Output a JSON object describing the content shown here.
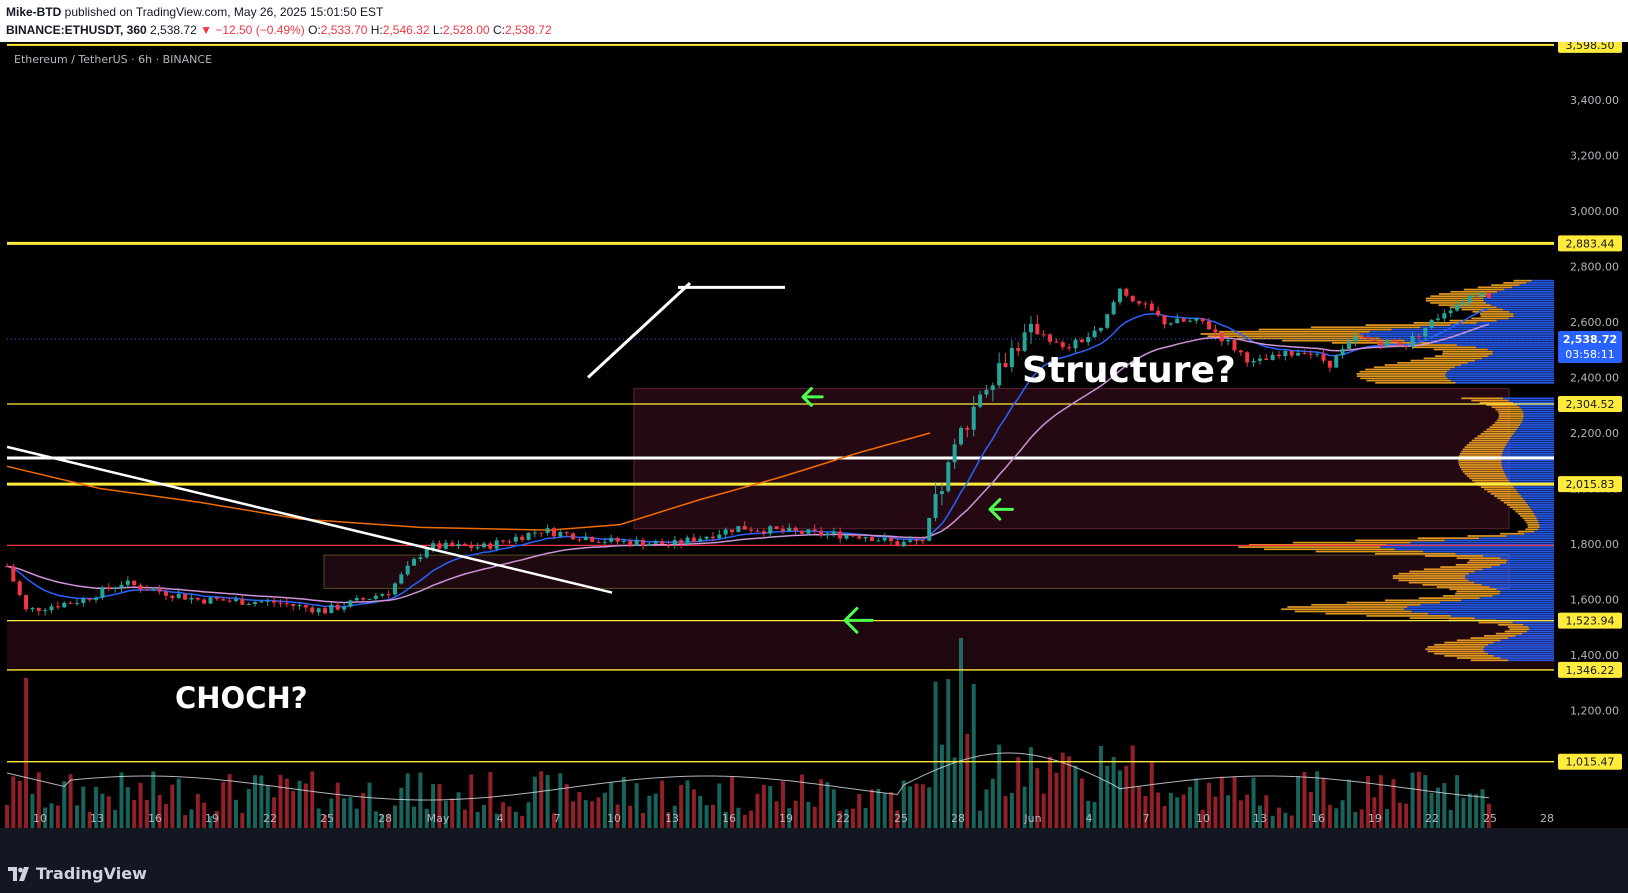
{
  "header": {
    "author": "Mike-BTD",
    "published": " published on TradingView.com, May 26, 2025 15:01:50 EST",
    "symbol": "BINANCE:ETHUSDT, 360",
    "last": " 2,538.72 ",
    "change": " −12.50 (−0.49%)",
    "o_label": "O:",
    "o": "2,533.70",
    "h_label": "H:",
    "h": "2,546.32",
    "l_label": "L:",
    "l": "2,528.00",
    "c_label": "C:",
    "c": "2,538.72"
  },
  "chart": {
    "pair_label": "Ethereum / TetherUS · 6h · BINANCE",
    "annotation_structure": "Structure?",
    "annotation_choch": "CHOCH?",
    "countdown": "03:58:11"
  },
  "footer": {
    "brand": "TradingView"
  },
  "chart_data": {
    "type": "candlestick",
    "y_axis_ticks": [
      "3,400.00",
      "3,200.00",
      "3,000.00",
      "2,800.00",
      "2,600.00",
      "2,400.00",
      "2,200.00",
      "2,000.00",
      "1,800.00",
      "1,600.00",
      "1,400.00",
      "1,200.00"
    ],
    "y_axis_tick_values": [
      3400,
      3200,
      3000,
      2800,
      2600,
      2400,
      2200,
      2000,
      1800,
      1600,
      1400,
      1200
    ],
    "x_axis_ticks": [
      "10",
      "13",
      "16",
      "19",
      "22",
      "25",
      "28",
      "May",
      "4",
      "7",
      "10",
      "13",
      "16",
      "19",
      "22",
      "25",
      "28",
      "Jun",
      "4",
      "7",
      "10",
      "13",
      "16",
      "19",
      "22",
      "25",
      "28"
    ],
    "y_range": [
      960,
      3620
    ],
    "levels": [
      {
        "price": 3598.5,
        "label": "3,598.50",
        "color": "#ffeb3b"
      },
      {
        "price": 2883.44,
        "label": "2,883.44",
        "color": "#ffeb3b"
      },
      {
        "price": 2304.52,
        "label": "2,304.52",
        "color": "#ffeb3b"
      },
      {
        "price": 2015.83,
        "label": "2,015.83",
        "color": "#ffeb3b"
      },
      {
        "price": 1523.94,
        "label": "1,523.94",
        "color": "#ffeb3b"
      },
      {
        "price": 1346.22,
        "label": "1,346.22",
        "color": "#ffeb3b"
      },
      {
        "price": 1015.47,
        "label": "1,015.47",
        "color": "#ffeb3b"
      },
      {
        "price": 2110,
        "label": "",
        "color": "#ffffff"
      },
      {
        "price": 1795,
        "label": "",
        "color": "#f23645"
      }
    ],
    "last_price": {
      "value": 2538.72,
      "label": "2,538.72",
      "color": "#2962ff"
    },
    "colors": {
      "up": "#26a69a",
      "down": "#f23645",
      "ema_fast": "#2962ff",
      "ema_mid": "#ce93d8",
      "ema_slow": "#ef6c00",
      "vpvr_up": "#2962ff",
      "vpvr_down": "#f9a825"
    }
  }
}
